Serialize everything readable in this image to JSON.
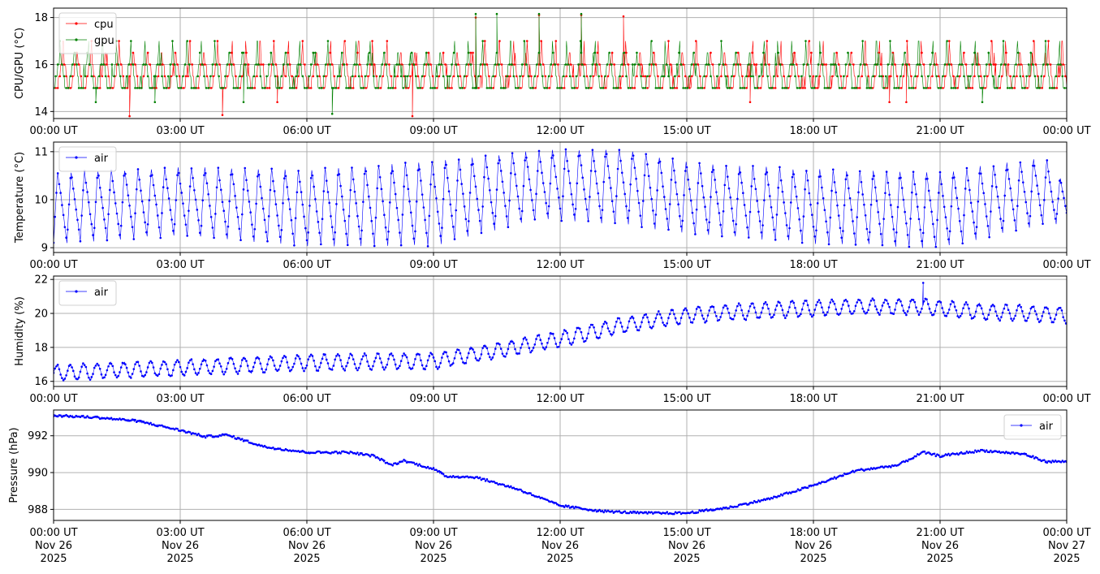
{
  "figure": {
    "background": "#ffffff"
  },
  "chart_data": [
    {
      "type": "line",
      "ylabel": "CPU/GPU (°C)",
      "ylim": [
        13.7,
        18.4
      ],
      "yticks": [
        "14",
        "16",
        "18"
      ],
      "ytick_values": [
        14,
        16,
        18
      ],
      "xticks": [
        "00:00 UT",
        "03:00 UT",
        "06:00 UT",
        "09:00 UT",
        "12:00 UT",
        "15:00 UT",
        "18:00 UT",
        "21:00 UT",
        "00:00 UT"
      ],
      "xlim_hours": [
        0,
        24
      ],
      "grid": true,
      "legend_position": "top-left",
      "series": [
        {
          "name": "cpu",
          "color": "#ff0000",
          "marker": "dot",
          "pattern": "step-sawtooth",
          "base": 15.0,
          "levels": [
            15.0,
            15.5,
            16.0,
            16.5,
            17.0
          ],
          "period_min": 20,
          "outliers": [
            [
              1.8,
              13.8
            ],
            [
              4.0,
              13.85
            ],
            [
              5.3,
              14.4
            ],
            [
              8.5,
              13.8
            ],
            [
              10.0,
              18.0
            ],
            [
              11.5,
              18.1
            ],
            [
              12.5,
              18.1
            ],
            [
              13.5,
              18.05
            ],
            [
              16.5,
              14.4
            ],
            [
              19.8,
              14.4
            ],
            [
              20.2,
              14.4
            ]
          ]
        },
        {
          "name": "gpu",
          "color": "#008000",
          "marker": "dot",
          "pattern": "step-sawtooth",
          "base": 15.0,
          "levels": [
            15.0,
            15.5,
            16.0,
            16.5,
            17.0
          ],
          "period_min": 20,
          "outliers": [
            [
              1.0,
              14.4
            ],
            [
              2.4,
              14.4
            ],
            [
              4.5,
              14.4
            ],
            [
              6.6,
              13.9
            ],
            [
              10.0,
              18.15
            ],
            [
              10.5,
              18.15
            ],
            [
              11.5,
              18.15
            ],
            [
              12.5,
              18.15
            ],
            [
              22.0,
              14.4
            ]
          ]
        }
      ]
    },
    {
      "type": "line",
      "ylabel": "Temperature (°C)",
      "ylim": [
        8.9,
        11.2
      ],
      "yticks": [
        "9",
        "10",
        "11"
      ],
      "ytick_values": [
        9,
        10,
        11
      ],
      "xticks": [
        "00:00 UT",
        "03:00 UT",
        "06:00 UT",
        "09:00 UT",
        "12:00 UT",
        "15:00 UT",
        "18:00 UT",
        "21:00 UT",
        "00:00 UT"
      ],
      "xlim_hours": [
        0,
        24
      ],
      "grid": true,
      "legend_position": "top-left",
      "series": [
        {
          "name": "air",
          "color": "#0000ff",
          "marker": "dot",
          "pattern": "oscillation",
          "period_min": 19,
          "envelope": [
            [
              0,
              9.1,
              10.6
            ],
            [
              3,
              9.25,
              10.7
            ],
            [
              6,
              9.05,
              10.65
            ],
            [
              9,
              9.05,
              10.85
            ],
            [
              11.5,
              9.6,
              11.05
            ],
            [
              13.5,
              9.5,
              11.1
            ],
            [
              15,
              9.3,
              10.8
            ],
            [
              18,
              9.1,
              10.65
            ],
            [
              21,
              9.0,
              10.6
            ],
            [
              23.5,
              9.5,
              10.9
            ],
            [
              24,
              9.5,
              10.3
            ]
          ]
        }
      ]
    },
    {
      "type": "line",
      "ylabel": "Humidity (%)",
      "ylim": [
        15.7,
        22.2
      ],
      "yticks": [
        "16",
        "18",
        "20",
        "22"
      ],
      "ytick_values": [
        16,
        18,
        20,
        22
      ],
      "xticks": [
        "00:00 UT",
        "03:00 UT",
        "06:00 UT",
        "09:00 UT",
        "12:00 UT",
        "15:00 UT",
        "18:00 UT",
        "21:00 UT",
        "00:00 UT"
      ],
      "xlim_hours": [
        0,
        24
      ],
      "grid": true,
      "legend_position": "top-left",
      "series": [
        {
          "name": "air",
          "color": "#0000ff",
          "marker": "dot",
          "pattern": "oscillation",
          "period_min": 19,
          "trend": [
            [
              0,
              16.5
            ],
            [
              3,
              16.8
            ],
            [
              6,
              17.1
            ],
            [
              9,
              17.2
            ],
            [
              10.5,
              17.8
            ],
            [
              12,
              18.5
            ],
            [
              13.5,
              19.3
            ],
            [
              15,
              19.9
            ],
            [
              17,
              20.2
            ],
            [
              19,
              20.4
            ],
            [
              20.5,
              20.4
            ],
            [
              22,
              20.1
            ],
            [
              24,
              19.9
            ]
          ],
          "amplitude": 0.45,
          "outliers": [
            [
              20.6,
              21.8
            ]
          ]
        }
      ]
    },
    {
      "type": "line",
      "ylabel": "Pressure (hPa)",
      "ylim": [
        987.4,
        993.4
      ],
      "yticks": [
        "988",
        "990",
        "992"
      ],
      "ytick_values": [
        988,
        990,
        992
      ],
      "xticks": [
        "00:00 UT\nNov 26\n2025",
        "03:00 UT\nNov 26\n2025",
        "06:00 UT\nNov 26\n2025",
        "09:00 UT\nNov 26\n2025",
        "12:00 UT\nNov 26\n2025",
        "15:00 UT\nNov 26\n2025",
        "18:00 UT\nNov 26\n2025",
        "21:00 UT\nNov 26\n2025",
        "00:00 UT\nNov 27\n2025"
      ],
      "xlim_hours": [
        0,
        24
      ],
      "grid": true,
      "legend_position": "top-right",
      "series": [
        {
          "name": "air",
          "color": "#0000ff",
          "marker": "dot",
          "pattern": "smooth",
          "trend": [
            [
              0,
              993.1
            ],
            [
              1,
              993.0
            ],
            [
              2,
              992.8
            ],
            [
              3,
              992.3
            ],
            [
              3.6,
              991.95
            ],
            [
              4.1,
              992.05
            ],
            [
              5,
              991.4
            ],
            [
              6,
              991.1
            ],
            [
              7,
              991.1
            ],
            [
              7.6,
              990.9
            ],
            [
              8,
              990.4
            ],
            [
              8.3,
              990.65
            ],
            [
              9,
              990.2
            ],
            [
              9.3,
              989.8
            ],
            [
              10,
              989.75
            ],
            [
              11,
              989.1
            ],
            [
              12,
              988.2
            ],
            [
              13,
              987.9
            ],
            [
              14,
              987.8
            ],
            [
              15,
              987.8
            ],
            [
              16,
              988.1
            ],
            [
              17,
              988.6
            ],
            [
              18,
              989.3
            ],
            [
              19,
              990.1
            ],
            [
              20,
              990.4
            ],
            [
              20.6,
              991.1
            ],
            [
              21,
              990.9
            ],
            [
              22,
              991.2
            ],
            [
              23,
              991.0
            ],
            [
              23.5,
              990.6
            ],
            [
              24,
              990.6
            ]
          ]
        }
      ]
    }
  ]
}
